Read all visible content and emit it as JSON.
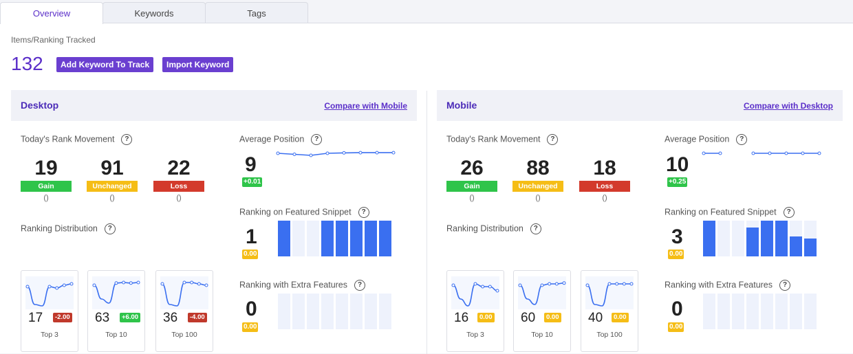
{
  "tabs": [
    {
      "label": "Overview",
      "active": true
    },
    {
      "label": "Keywords",
      "active": false
    },
    {
      "label": "Tags",
      "active": false
    }
  ],
  "summary": {
    "label": "Items/Ranking Tracked",
    "count": "132",
    "add_button": "Add Keyword To Track",
    "import_button": "Import Keyword"
  },
  "desktop": {
    "title": "Desktop",
    "compare_link": "Compare with Mobile",
    "rank_movement": {
      "label": "Today's Rank Movement",
      "gain": {
        "value": "19",
        "label": "Gain",
        "sub": "()"
      },
      "unchanged": {
        "value": "91",
        "label": "Unchanged",
        "sub": "()"
      },
      "loss": {
        "value": "22",
        "label": "Loss",
        "sub": "()"
      }
    },
    "distribution": {
      "label": "Ranking Distribution",
      "cards": [
        {
          "value": "17",
          "change": "-2.00",
          "change_color": "#c0392b",
          "caption": "Top 3",
          "trend": [
            0.75,
            0.1,
            0.05,
            0.75,
            0.7,
            0.8,
            0.85
          ]
        },
        {
          "value": "63",
          "change": "+6.00",
          "change_color": "#2fc44a",
          "caption": "Top 10",
          "trend": [
            0.8,
            0.3,
            0.15,
            0.88,
            0.9,
            0.88,
            0.9
          ]
        },
        {
          "value": "36",
          "change": "-4.00",
          "change_color": "#c0392b",
          "caption": "Top 100",
          "trend": [
            0.85,
            0.1,
            0.05,
            0.9,
            0.9,
            0.85,
            0.8
          ]
        }
      ]
    },
    "average_position": {
      "label": "Average Position",
      "value": "9",
      "change": "+0.01",
      "change_color": "#2fc44a",
      "trend": [
        0.6,
        0.55,
        0.5,
        0.6,
        0.62,
        0.63,
        0.63,
        0.63
      ]
    },
    "featured_snippet": {
      "label": "Ranking on Featured Snippet",
      "value": "1",
      "change": "0.00",
      "bars": [
        1,
        0,
        0,
        1,
        1,
        1,
        1,
        1
      ]
    },
    "extra_features": {
      "label": "Ranking with Extra Features",
      "value": "0",
      "change": "0.00",
      "bars": [
        0,
        0,
        0,
        0,
        0,
        0,
        0,
        0
      ]
    }
  },
  "mobile": {
    "title": "Mobile",
    "compare_link": "Compare with Desktop",
    "rank_movement": {
      "label": "Today's Rank Movement",
      "gain": {
        "value": "26",
        "label": "Gain",
        "sub": "()"
      },
      "unchanged": {
        "value": "88",
        "label": "Unchanged",
        "sub": "()"
      },
      "loss": {
        "value": "18",
        "label": "Loss",
        "sub": "()"
      }
    },
    "distribution": {
      "label": "Ranking Distribution",
      "cards": [
        {
          "value": "16",
          "change": "0.00",
          "change_color": "#f5bd16",
          "caption": "Top 3",
          "trend": [
            0.8,
            0.3,
            0.05,
            0.85,
            0.75,
            0.75,
            0.6
          ]
        },
        {
          "value": "60",
          "change": "0.00",
          "change_color": "#f5bd16",
          "caption": "Top 10",
          "trend": [
            0.8,
            0.3,
            0.1,
            0.8,
            0.85,
            0.85,
            0.88
          ]
        },
        {
          "value": "40",
          "change": "0.00",
          "change_color": "#f5bd16",
          "caption": "Top 100",
          "trend": [
            0.8,
            0.1,
            0.05,
            0.85,
            0.85,
            0.85,
            0.85
          ]
        }
      ]
    },
    "average_position": {
      "label": "Average Position",
      "value": "10",
      "change": "+0.25",
      "change_color": "#2fc44a",
      "trend": [
        0.6,
        0.6,
        null,
        0.6,
        0.6,
        0.6,
        0.6,
        0.6
      ]
    },
    "featured_snippet": {
      "label": "Ranking on Featured Snippet",
      "value": "3",
      "change": "0.00",
      "bars": [
        1,
        0,
        0,
        0.8,
        1,
        1,
        0.55,
        0.5
      ]
    },
    "extra_features": {
      "label": "Ranking with Extra Features",
      "value": "0",
      "change": "0.00",
      "bars": [
        0,
        0,
        0,
        0,
        0,
        0,
        0,
        0
      ]
    }
  },
  "colors": {
    "accent": "#5b2fc9",
    "button": "#6a3fd0",
    "gain": "#2fc44a",
    "unchanged": "#f5bd16",
    "loss": "#d33a2c",
    "bar": "#3a6ff0",
    "bar_bg": "#eef2fc"
  }
}
